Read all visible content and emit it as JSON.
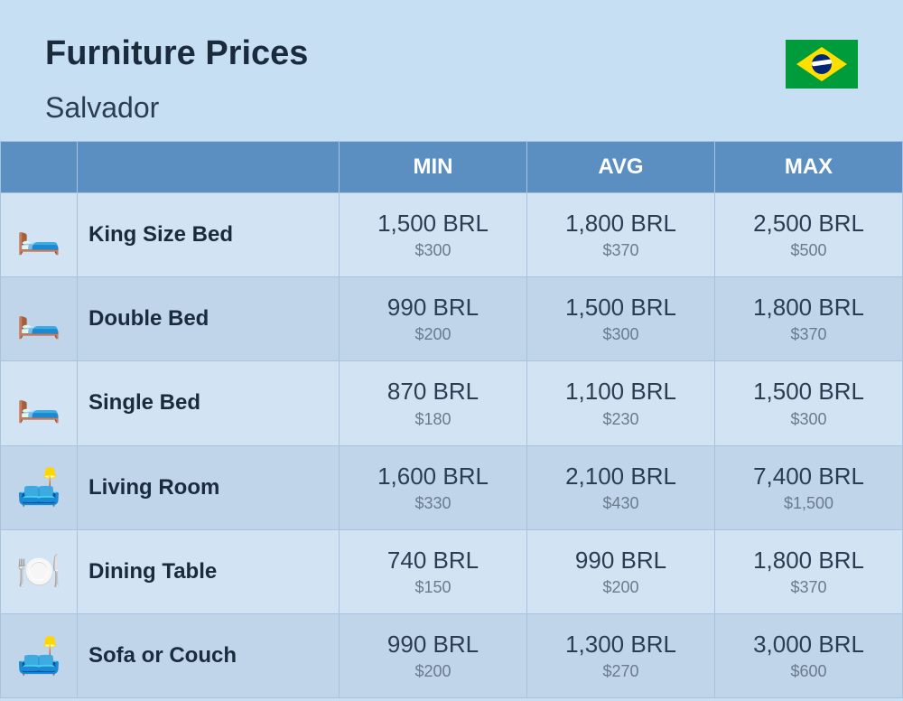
{
  "header": {
    "title": "Furniture Prices",
    "city": "Salvador"
  },
  "columns": {
    "min": "MIN",
    "avg": "AVG",
    "max": "MAX"
  },
  "rows": [
    {
      "icon": "🛏️",
      "name": "King Size Bed",
      "min": {
        "primary": "1,500 BRL",
        "secondary": "$300"
      },
      "avg": {
        "primary": "1,800 BRL",
        "secondary": "$370"
      },
      "max": {
        "primary": "2,500 BRL",
        "secondary": "$500"
      }
    },
    {
      "icon": "🛏️",
      "name": "Double Bed",
      "min": {
        "primary": "990 BRL",
        "secondary": "$200"
      },
      "avg": {
        "primary": "1,500 BRL",
        "secondary": "$300"
      },
      "max": {
        "primary": "1,800 BRL",
        "secondary": "$370"
      }
    },
    {
      "icon": "🛏️",
      "name": "Single Bed",
      "min": {
        "primary": "870 BRL",
        "secondary": "$180"
      },
      "avg": {
        "primary": "1,100 BRL",
        "secondary": "$230"
      },
      "max": {
        "primary": "1,500 BRL",
        "secondary": "$300"
      }
    },
    {
      "icon": "🛋️",
      "name": "Living Room",
      "min": {
        "primary": "1,600 BRL",
        "secondary": "$330"
      },
      "avg": {
        "primary": "2,100 BRL",
        "secondary": "$430"
      },
      "max": {
        "primary": "7,400 BRL",
        "secondary": "$1,500"
      }
    },
    {
      "icon": "🍽️",
      "name": "Dining Table",
      "min": {
        "primary": "740 BRL",
        "secondary": "$150"
      },
      "avg": {
        "primary": "990 BRL",
        "secondary": "$200"
      },
      "max": {
        "primary": "1,800 BRL",
        "secondary": "$370"
      }
    },
    {
      "icon": "🛋️",
      "name": "Sofa or Couch",
      "min": {
        "primary": "990 BRL",
        "secondary": "$200"
      },
      "avg": {
        "primary": "1,300 BRL",
        "secondary": "$270"
      },
      "max": {
        "primary": "3,000 BRL",
        "secondary": "$600"
      }
    }
  ],
  "colors": {
    "page_bg": "#c7dff2",
    "header_bg": "#5b8ec1",
    "row_odd_bg": "#d2e3f3",
    "row_even_bg": "#c0d5ea",
    "border": "#a8c3dd",
    "text_primary": "#2b3d52",
    "text_secondary": "#6a7b8c",
    "title_color": "#1a2b3d"
  }
}
